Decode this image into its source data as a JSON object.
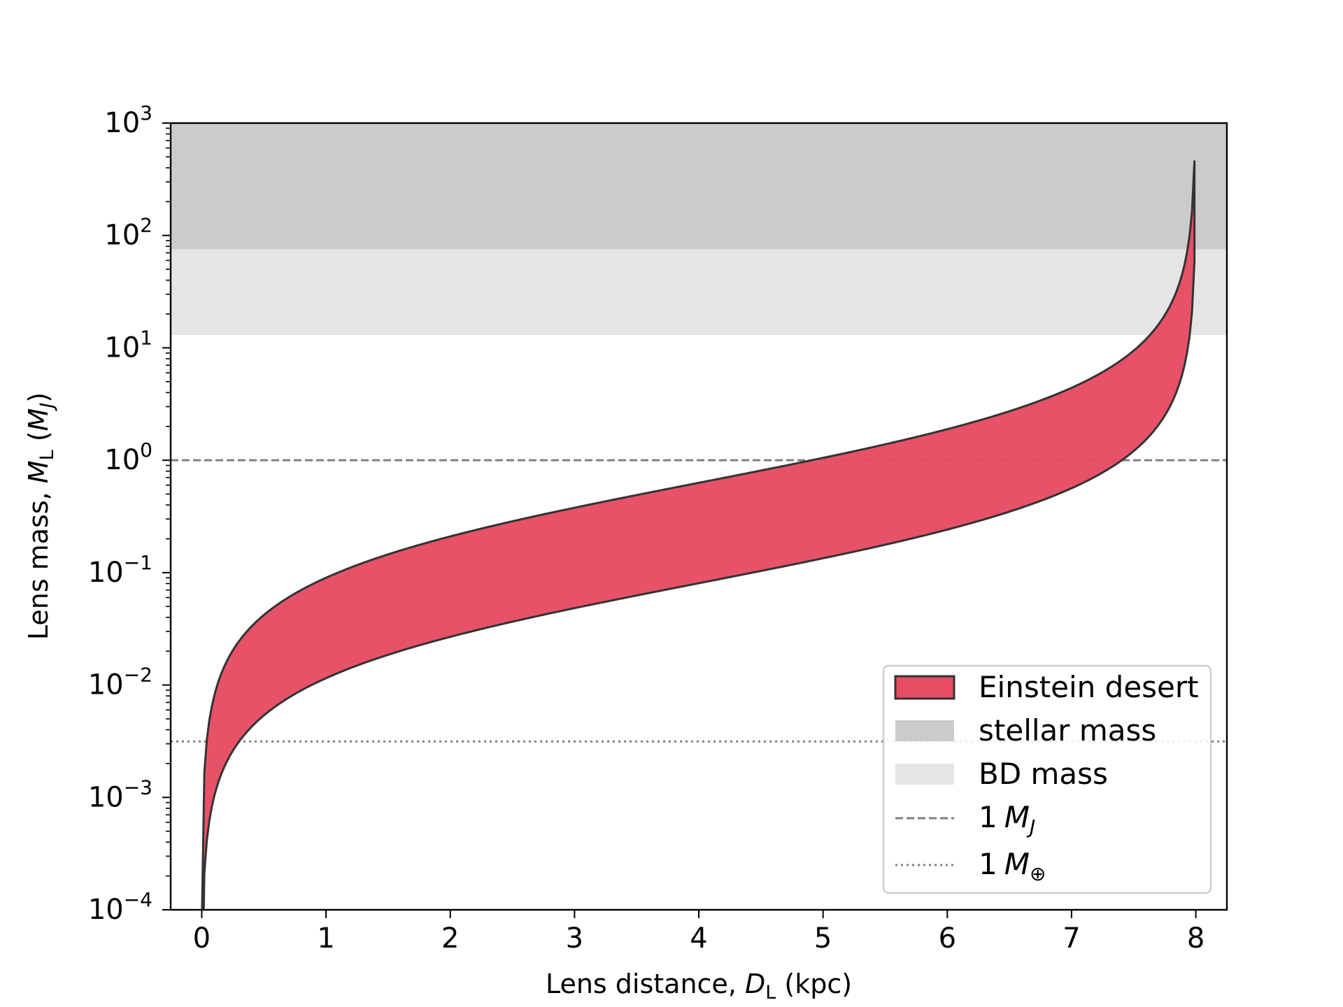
{
  "chart_data": {
    "type": "area",
    "title": "",
    "xlabel": "Lens distance, D_L (kpc)",
    "ylabel": "Lens mass, M_L (M_J)",
    "xlabel_parts": {
      "prefix": "Lens distance, ",
      "var": "D",
      "sub": "L",
      "suffix": " (kpc)"
    },
    "ylabel_parts": {
      "prefix": "Lens mass, ",
      "var": "M",
      "sub": "L",
      "open": " (",
      "unit": "M",
      "unit_sub": "J",
      "close": ")"
    },
    "xlim": [
      -0.25,
      8.25
    ],
    "ylim": [
      0.0001,
      1000
    ],
    "yscale": "log",
    "x_ticks": [
      "0",
      "1",
      "2",
      "3",
      "4",
      "5",
      "6",
      "7",
      "8"
    ],
    "y_ticks": [
      {
        "base": "10",
        "exp": "−4"
      },
      {
        "base": "10",
        "exp": "−3"
      },
      {
        "base": "10",
        "exp": "−2"
      },
      {
        "base": "10",
        "exp": "−1"
      },
      {
        "base": "10",
        "exp": "0"
      },
      {
        "base": "10",
        "exp": "1"
      },
      {
        "base": "10",
        "exp": "2"
      },
      {
        "base": "10",
        "exp": "3"
      }
    ],
    "grid": false,
    "legend_position": "lower right",
    "source_distance_kpc": 8,
    "einstein_desert_band": {
      "upper_mass_at_1kpc_MJ": 0.09,
      "lower_mass_at_1kpc_MJ": 0.0115
    },
    "regions": [
      {
        "name": "stellar mass",
        "y_range": [
          75,
          1000
        ],
        "color": "#cbcbcb"
      },
      {
        "name": "BD mass",
        "y_range": [
          13,
          75
        ],
        "color": "#e5e5e5"
      }
    ],
    "reference_lines": [
      {
        "name": "1 M_J",
        "y": 1.0,
        "style": "dashed",
        "color": "#808080"
      },
      {
        "name": "1 M_⊕",
        "y": 0.00315,
        "style": "dotted",
        "color": "#808080"
      }
    ],
    "band_color": "#e74c63",
    "legend": [
      {
        "label": "Einstein desert",
        "kind": "patch"
      },
      {
        "label": "stellar mass",
        "kind": "patch"
      },
      {
        "label": "BD mass",
        "kind": "patch"
      },
      {
        "label": "1 M_J",
        "kind": "line",
        "num": "1",
        "var": "M",
        "sub": "J"
      },
      {
        "label": "1 M_⊕",
        "kind": "line",
        "num": "1",
        "var": "M",
        "sub": "⊕"
      }
    ]
  }
}
